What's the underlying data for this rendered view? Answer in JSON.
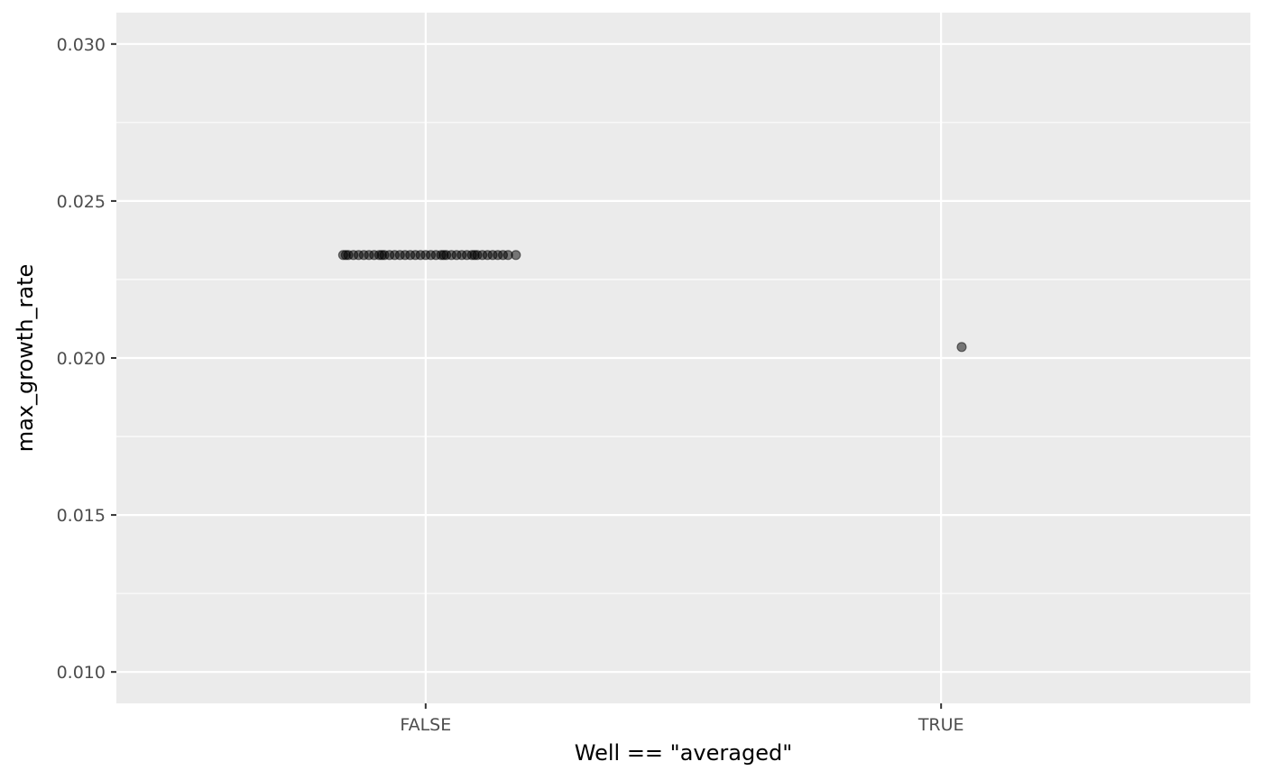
{
  "chart_data": {
    "type": "scatter",
    "title": "",
    "xlabel": "Well == \"averaged\"",
    "ylabel": "max_growth_rate",
    "x_type": "categorical",
    "categories": [
      "FALSE",
      "TRUE"
    ],
    "ylim": [
      0.009,
      0.031
    ],
    "y_ticks": [
      0.01,
      0.015,
      0.02,
      0.025,
      0.03
    ],
    "y_tick_labels": [
      "0.010",
      "0.015",
      "0.020",
      "0.025",
      "0.030"
    ],
    "grid": true,
    "legend": "none",
    "points": [
      {
        "category": "FALSE",
        "jitter": -0.16,
        "y": 0.02328
      },
      {
        "category": "FALSE",
        "jitter": -0.15,
        "y": 0.02328
      },
      {
        "category": "FALSE",
        "jitter": -0.14,
        "y": 0.02328
      },
      {
        "category": "FALSE",
        "jitter": -0.13,
        "y": 0.02328
      },
      {
        "category": "FALSE",
        "jitter": -0.12,
        "y": 0.02328
      },
      {
        "category": "FALSE",
        "jitter": -0.11,
        "y": 0.02328
      },
      {
        "category": "FALSE",
        "jitter": -0.1,
        "y": 0.02328
      },
      {
        "category": "FALSE",
        "jitter": -0.09,
        "y": 0.02328
      },
      {
        "category": "FALSE",
        "jitter": -0.08,
        "y": 0.02328
      },
      {
        "category": "FALSE",
        "jitter": -0.07,
        "y": 0.02328
      },
      {
        "category": "FALSE",
        "jitter": -0.06,
        "y": 0.02328
      },
      {
        "category": "FALSE",
        "jitter": -0.05,
        "y": 0.02328
      },
      {
        "category": "FALSE",
        "jitter": -0.04,
        "y": 0.02328
      },
      {
        "category": "FALSE",
        "jitter": -0.03,
        "y": 0.02328
      },
      {
        "category": "FALSE",
        "jitter": -0.02,
        "y": 0.02328
      },
      {
        "category": "FALSE",
        "jitter": -0.01,
        "y": 0.02328
      },
      {
        "category": "FALSE",
        "jitter": 0.0,
        "y": 0.02328
      },
      {
        "category": "FALSE",
        "jitter": 0.01,
        "y": 0.02328
      },
      {
        "category": "FALSE",
        "jitter": 0.02,
        "y": 0.02328
      },
      {
        "category": "FALSE",
        "jitter": 0.03,
        "y": 0.02328
      },
      {
        "category": "FALSE",
        "jitter": 0.04,
        "y": 0.02328
      },
      {
        "category": "FALSE",
        "jitter": 0.05,
        "y": 0.02328
      },
      {
        "category": "FALSE",
        "jitter": 0.06,
        "y": 0.02328
      },
      {
        "category": "FALSE",
        "jitter": 0.07,
        "y": 0.02328
      },
      {
        "category": "FALSE",
        "jitter": 0.08,
        "y": 0.02328
      },
      {
        "category": "FALSE",
        "jitter": 0.09,
        "y": 0.02328
      },
      {
        "category": "FALSE",
        "jitter": 0.1,
        "y": 0.02328
      },
      {
        "category": "FALSE",
        "jitter": 0.11,
        "y": 0.02328
      },
      {
        "category": "FALSE",
        "jitter": 0.12,
        "y": 0.02328
      },
      {
        "category": "FALSE",
        "jitter": 0.13,
        "y": 0.02328
      },
      {
        "category": "FALSE",
        "jitter": 0.14,
        "y": 0.02328
      },
      {
        "category": "FALSE",
        "jitter": 0.15,
        "y": 0.02328
      },
      {
        "category": "FALSE",
        "jitter": 0.16,
        "y": 0.02328
      },
      {
        "category": "FALSE",
        "jitter": 0.175,
        "y": 0.02328
      },
      {
        "category": "FALSE",
        "jitter": -0.155,
        "y": 0.02328
      },
      {
        "category": "FALSE",
        "jitter": -0.085,
        "y": 0.02328
      },
      {
        "category": "FALSE",
        "jitter": 0.035,
        "y": 0.02328
      },
      {
        "category": "FALSE",
        "jitter": 0.095,
        "y": 0.02328
      },
      {
        "category": "TRUE",
        "jitter": 0.04,
        "y": 0.02035
      }
    ],
    "colors": {
      "panel_background": "#ebebeb",
      "grid_major": "#ffffff",
      "grid_minor": "#f5f5f5",
      "point": "#000000",
      "tick_text": "#4d4d4d",
      "axis_title": "#000000"
    }
  }
}
